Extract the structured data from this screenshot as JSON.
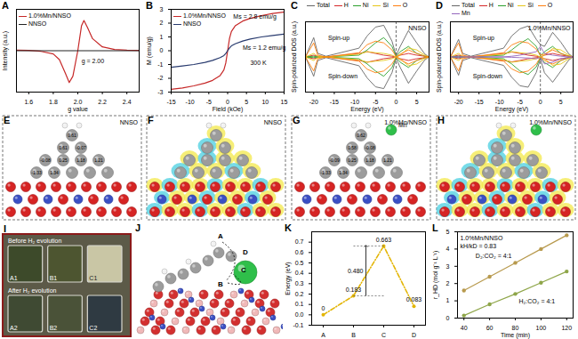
{
  "chart_data": [
    {
      "panel": "A",
      "type": "line",
      "x_label": "g value",
      "y_label": "Intensity (a.u.)",
      "x": [
        1.5,
        1.6,
        1.7,
        1.8,
        1.85,
        1.9,
        1.93,
        1.96,
        2.0,
        2.03,
        2.05,
        2.08,
        2.12,
        2.2,
        2.3,
        2.4,
        2.5
      ],
      "series": [
        {
          "name": "1.0%Mn/NNSO",
          "color": "#c62828",
          "values": [
            0.02,
            0.01,
            -0.02,
            -0.1,
            -0.28,
            -0.72,
            -1.0,
            -0.8,
            0.0,
            0.78,
            0.95,
            0.72,
            0.38,
            0.12,
            0.04,
            0.02,
            0.01
          ]
        },
        {
          "name": "NNSO",
          "color": "#222222",
          "values": [
            0,
            0,
            0,
            0,
            0,
            0,
            0,
            0,
            0,
            0,
            0,
            0,
            0,
            0,
            0,
            0,
            0
          ]
        }
      ],
      "xlim": [
        1.5,
        2.5
      ],
      "xticks": [
        1.6,
        1.8,
        {
          "value": 2,
          "label": "2.0"
        },
        2.2,
        2.4
      ],
      "ylim": [
        -1.3,
        1.3
      ],
      "tick_labels": "x",
      "legend": "upper left",
      "annotations": [
        {
          "text": "g = 2.00",
          "x": 2.03,
          "y": -0.32
        }
      ]
    },
    {
      "panel": "B",
      "type": "line",
      "x_label": "Field (kOe)",
      "y_label": "M (emu/g)",
      "x": [
        -15,
        -12,
        -9,
        -6,
        -4,
        -2,
        -1,
        -0.5,
        0,
        0.5,
        1,
        2,
        4,
        6,
        9,
        12,
        15
      ],
      "series": [
        {
          "name": "1.0%Mn/NNSO",
          "color": "#c62828",
          "values": [
            -2.8,
            -2.7,
            -2.55,
            -2.35,
            -2.15,
            -1.8,
            -1.4,
            -0.9,
            0,
            0.9,
            1.4,
            1.8,
            2.15,
            2.35,
            2.55,
            2.7,
            2.8
          ]
        },
        {
          "name": "NNSO",
          "color": "#283a6e",
          "values": [
            -1.2,
            -1.1,
            -1.0,
            -0.85,
            -0.7,
            -0.5,
            -0.35,
            -0.2,
            0,
            0.2,
            0.35,
            0.5,
            0.7,
            0.85,
            1.0,
            1.1,
            1.2
          ]
        }
      ],
      "xlim": [
        -15,
        15
      ],
      "xticks": [
        -15,
        -10,
        -5,
        0,
        5,
        10,
        15
      ],
      "ylim": [
        -3,
        3
      ],
      "yticks": [
        -3,
        -2,
        -1,
        0,
        1,
        2,
        3
      ],
      "legend": "upper left",
      "annotations": [
        {
          "text": "300 K",
          "x": 6,
          "y": -0.9
        },
        {
          "text": "Ms = 2.8 emu/g",
          "x": 1.5,
          "y": 2.45
        },
        {
          "text": "Ms = 1.2 emu/g",
          "x": 4,
          "y": 0.2
        }
      ]
    },
    {
      "panel": "C",
      "type": "line",
      "title": "NNSO",
      "x_label": "Energy (eV)",
      "y_label": "Spin-polarized DOS (a.u.)",
      "x": [
        -22,
        -20,
        -19,
        -17,
        -9,
        -7,
        -5,
        -3,
        -1,
        0,
        1,
        3,
        5,
        7,
        8
      ],
      "series": [
        {
          "name": "Total",
          "color": "#666666",
          "up": [
            0,
            0.55,
            0.1,
            0.02,
            0.25,
            0.6,
            0.85,
            0.9,
            0.45,
            0.04,
            0.3,
            0.75,
            0.4,
            0.08,
            0
          ],
          "down": [
            0,
            -0.55,
            -0.1,
            -0.02,
            -0.25,
            -0.6,
            -0.85,
            -0.9,
            -0.45,
            -0.04,
            -0.3,
            -0.75,
            -0.4,
            -0.08,
            0
          ]
        },
        {
          "name": "H",
          "color": "#d62728",
          "up": [
            0,
            0.05,
            0.02,
            0,
            0.1,
            0.15,
            0.1,
            0.05,
            0.02,
            0,
            0.05,
            0.1,
            0.05,
            0.02,
            0
          ],
          "down": [
            0,
            -0.05,
            -0.02,
            0,
            -0.1,
            -0.15,
            -0.1,
            -0.05,
            -0.02,
            0,
            -0.05,
            -0.1,
            -0.05,
            -0.02,
            0
          ]
        },
        {
          "name": "Ni",
          "color": "#2ca02c",
          "up": [
            0,
            0.02,
            0,
            0,
            0.05,
            0.2,
            0.4,
            0.55,
            0.3,
            0.02,
            0.15,
            0.3,
            0.1,
            0.02,
            0
          ],
          "down": [
            0,
            -0.02,
            0,
            0,
            -0.05,
            -0.2,
            -0.4,
            -0.55,
            -0.3,
            -0.02,
            -0.15,
            -0.3,
            -0.1,
            -0.02,
            0
          ]
        },
        {
          "name": "Si",
          "color": "#e6c619",
          "up": [
            0,
            0.1,
            0.02,
            0,
            0.08,
            0.15,
            0.12,
            0.1,
            0.05,
            0,
            0.05,
            0.25,
            0.2,
            0.05,
            0
          ],
          "down": [
            0,
            -0.1,
            -0.02,
            0,
            -0.08,
            -0.15,
            -0.12,
            -0.1,
            -0.05,
            0,
            -0.05,
            -0.25,
            -0.2,
            -0.05,
            0
          ]
        },
        {
          "name": "O",
          "color": "#ff7f0e",
          "up": [
            0,
            0.4,
            0.05,
            0,
            0.12,
            0.35,
            0.45,
            0.4,
            0.2,
            0.01,
            0.08,
            0.2,
            0.1,
            0.02,
            0
          ],
          "down": [
            0,
            -0.4,
            -0.05,
            0,
            -0.12,
            -0.35,
            -0.45,
            -0.4,
            -0.2,
            -0.01,
            -0.08,
            -0.2,
            -0.1,
            -0.02,
            0
          ]
        }
      ],
      "fermi_level": 0,
      "xlim": [
        -22,
        8
      ],
      "xticks": [
        -20,
        -15,
        -10,
        -5,
        0,
        5
      ],
      "ylim": [
        -1,
        1
      ],
      "tick_labels": "x",
      "legend": "top",
      "annotations": [
        {
          "text": "Spin-up",
          "x": -16.5,
          "y": 0.55
        },
        {
          "text": "Spin-down",
          "x": -16.5,
          "y": -0.55
        }
      ]
    },
    {
      "panel": "D",
      "type": "line",
      "title": "1.0%Mn/NNSO",
      "x_label": "Energy (eV)",
      "y_label": "Spin-polarized DOS (a.u.)",
      "x": [
        -22,
        -20,
        -19,
        -17,
        -9,
        -7,
        -5,
        -3,
        -1,
        0,
        1,
        3,
        5,
        7,
        8
      ],
      "series": [
        {
          "name": "Total",
          "color": "#666666",
          "up": [
            0,
            0.5,
            0.1,
            0.02,
            0.25,
            0.6,
            0.8,
            0.88,
            0.5,
            0.35,
            0.3,
            0.7,
            0.42,
            0.08,
            0
          ],
          "down": [
            0,
            -0.52,
            -0.1,
            -0.02,
            -0.24,
            -0.58,
            -0.82,
            -0.86,
            -0.44,
            -0.05,
            -0.45,
            -0.72,
            -0.4,
            -0.08,
            0
          ]
        },
        {
          "name": "H",
          "color": "#d62728",
          "up": [
            0,
            0.05,
            0.02,
            0,
            0.1,
            0.14,
            0.1,
            0.05,
            0.02,
            0,
            0.05,
            0.1,
            0.05,
            0.02,
            0
          ],
          "down": [
            0,
            -0.05,
            -0.02,
            0,
            -0.1,
            -0.14,
            -0.1,
            -0.05,
            -0.02,
            0,
            -0.05,
            -0.1,
            -0.05,
            -0.02,
            0
          ]
        },
        {
          "name": "Ni",
          "color": "#2ca02c",
          "up": [
            0,
            0.02,
            0,
            0,
            0.05,
            0.2,
            0.38,
            0.52,
            0.3,
            0.03,
            0.15,
            0.3,
            0.1,
            0.02,
            0
          ],
          "down": [
            0,
            -0.02,
            0,
            0,
            -0.05,
            -0.2,
            -0.4,
            -0.5,
            -0.28,
            -0.02,
            -0.16,
            -0.3,
            -0.1,
            -0.02,
            0
          ]
        },
        {
          "name": "Si",
          "color": "#e6c619",
          "up": [
            0,
            0.1,
            0.02,
            0,
            0.08,
            0.15,
            0.12,
            0.1,
            0.05,
            0,
            0.05,
            0.24,
            0.2,
            0.05,
            0
          ],
          "down": [
            0,
            -0.1,
            -0.02,
            0,
            -0.08,
            -0.15,
            -0.12,
            -0.1,
            -0.05,
            0,
            -0.05,
            -0.24,
            -0.2,
            -0.05,
            0
          ]
        },
        {
          "name": "O",
          "color": "#ff7f0e",
          "up": [
            0,
            0.4,
            0.05,
            0,
            0.12,
            0.34,
            0.44,
            0.4,
            0.22,
            0.05,
            0.08,
            0.2,
            0.1,
            0.02,
            0
          ],
          "down": [
            0,
            -0.4,
            -0.05,
            0,
            -0.12,
            -0.34,
            -0.45,
            -0.4,
            -0.2,
            -0.01,
            -0.1,
            -0.2,
            -0.1,
            -0.02,
            0
          ]
        },
        {
          "name": "Mn",
          "color": "#9467bd",
          "up": [
            0,
            0,
            0,
            0,
            0,
            0.02,
            0.05,
            0.1,
            0.15,
            0.3,
            0.1,
            0.05,
            0.02,
            0,
            0
          ],
          "down": [
            0,
            0,
            0,
            0,
            0,
            -0.01,
            -0.02,
            -0.03,
            -0.05,
            -0.02,
            -0.2,
            -0.15,
            -0.05,
            -0.01,
            0
          ]
        }
      ],
      "fermi_level": 0,
      "xlim": [
        -22,
        8
      ],
      "xticks": [
        -20,
        -15,
        -10,
        -5,
        0,
        5
      ],
      "ylim": [
        -1,
        1
      ],
      "tick_labels": "x",
      "legend": "top",
      "annotations": [
        {
          "text": "Spin-up",
          "x": -16.5,
          "y": 0.55
        },
        {
          "text": "Spin-down",
          "x": -16.5,
          "y": -0.55
        }
      ]
    },
    {
      "panel": "K",
      "type": "line",
      "y_label": "Energy (eV)",
      "categories": [
        "A",
        "B",
        "C",
        "D"
      ],
      "values": [
        0,
        0.183,
        0.663,
        0.083
      ],
      "ylim": [
        -0.1,
        0.8
      ],
      "yticks": [
        -0.1,
        {
          "value": 0,
          "label": "0.0"
        },
        0.1,
        0.2,
        0.3,
        0.4,
        0.5,
        0.6,
        0.7
      ],
      "color": "#e3b505",
      "line_style": "dashdot",
      "marker": "circle",
      "data_labels": true,
      "annotations": [
        {
          "text": "0.480",
          "value": 0.48
        }
      ]
    },
    {
      "panel": "L",
      "type": "line",
      "title": "1.0%Mn/NNSO",
      "x_label": "Time (min)",
      "y_label": "r_HD (mol g⁻¹ L⁻¹)",
      "x": [
        40,
        60,
        80,
        100,
        120
      ],
      "series": [
        {
          "name": "D₂:CO₂ = 4:1",
          "color": "#b89a4e",
          "marker": "circle",
          "values": [
            1.6,
            2.4,
            3.2,
            4.0,
            4.8
          ]
        },
        {
          "name": "H₂:CO₂ = 4:1",
          "color": "#8fa64a",
          "marker": "circle",
          "values": [
            0.15,
            0.8,
            1.4,
            2.05,
            2.7
          ]
        }
      ],
      "xlim": [
        35,
        125
      ],
      "xticks": [
        40,
        60,
        80,
        100,
        120
      ],
      "ylim": [
        0,
        5
      ],
      "yticks": [
        0,
        1,
        2,
        3,
        4,
        5
      ],
      "annotations": [
        {
          "text": "kH/kD = 0.83"
        }
      ]
    }
  ],
  "panels": [
    {
      "panel": "E",
      "title": "NNSO",
      "charges": [
        "0.61",
        "0.61",
        "-0.07",
        "-0.08",
        "0.25",
        "1.18",
        "1.21",
        "-1.33",
        "1.34"
      ]
    },
    {
      "panel": "F",
      "title": "NNSO"
    },
    {
      "panel": "G",
      "title": "1.0%Mn/NNSO",
      "dopant": "Mn",
      "charges": [
        "0.62",
        "0.58",
        "-0.08",
        "-0.09",
        "0.25",
        "1.18",
        "1.21",
        "-1.33",
        "1.34"
      ]
    },
    {
      "panel": "H",
      "title": "1.0%Mn/NNSO"
    },
    {
      "panel": "I",
      "rows": [
        {
          "label": "Before H₂ evolution",
          "cells": [
            "A1",
            "B1",
            "C1"
          ]
        },
        {
          "label": "After H₂ evolution",
          "cells": [
            "A2",
            "B2",
            "C2"
          ]
        }
      ]
    },
    {
      "panel": "J",
      "sites": [
        "A",
        "B",
        "C",
        "D"
      ]
    }
  ]
}
